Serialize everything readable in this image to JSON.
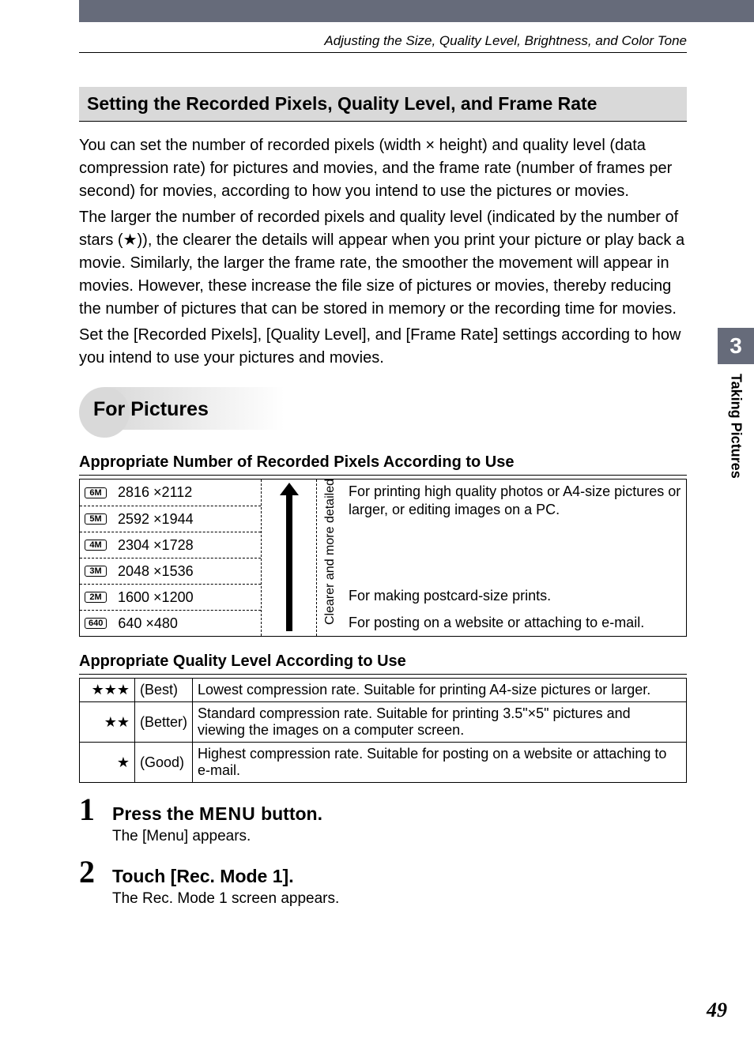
{
  "header": {
    "breadcrumb": "Adjusting the Size, Quality Level, Brightness, and Color Tone"
  },
  "section": {
    "heading": "Setting the Recorded Pixels, Quality Level, and Frame Rate"
  },
  "intro": {
    "p1": "You can set the number of recorded pixels (width × height) and quality level (data compression rate) for pictures and movies, and the frame rate (number of frames per second) for movies, according to how you intend to use the pictures or movies.",
    "p2a": "The larger the number of recorded pixels and quality level (indicated by the number of stars (",
    "p2_star": "★",
    "p2b": ")), the clearer the details will appear when you print your picture or play back a movie. Similarly, the larger the frame rate, the smoother the movement will appear in movies. However, these increase the file size of pictures or movies, thereby reducing the number of pictures that can be stored in memory or the recording time for movies.",
    "p3": "Set the [Recorded Pixels], [Quality Level], and [Frame Rate] settings according to how you intend to use your pictures and movies."
  },
  "for_pictures": {
    "title": "For Pictures",
    "pixels_heading": "Appropriate Number of Recorded Pixels According to Use",
    "rows": [
      {
        "badge": "6M",
        "dim": "2816 ×2112"
      },
      {
        "badge": "5M",
        "dim": "2592 ×1944"
      },
      {
        "badge": "4M",
        "dim": "2304 ×1728"
      },
      {
        "badge": "3M",
        "dim": "2048 ×1536"
      },
      {
        "badge": "2M",
        "dim": "1600 ×1200"
      },
      {
        "badge": "640",
        "dim": "640 ×480"
      }
    ],
    "arrow_label": "Clearer and more detailed",
    "use_top": "For printing high quality photos or A4-size pictures or larger, or editing images on a PC.",
    "use_mid": "For making postcard-size prints.",
    "use_bot": "For posting on a website or attaching to e-mail.",
    "quality_heading": "Appropriate Quality Level According to Use",
    "quality_rows": [
      {
        "stars": "★★★",
        "label": "(Best)",
        "desc": "Lowest compression rate. Suitable for printing A4-size pictures or larger."
      },
      {
        "stars": "★★",
        "label": "(Better)",
        "desc": "Standard compression rate. Suitable for printing 3.5\"×5\" pictures and viewing the images on a computer screen."
      },
      {
        "stars": "★",
        "label": "(Good)",
        "desc": "Highest compression rate. Suitable for posting on a website or attaching to e-mail."
      }
    ]
  },
  "steps": [
    {
      "num": "1",
      "title_a": "Press the ",
      "title_b": "MENU",
      "title_c": " button.",
      "desc": "The [Menu] appears."
    },
    {
      "num": "2",
      "title_a": "Touch [Rec. Mode 1].",
      "title_b": "",
      "title_c": "",
      "desc": "The Rec. Mode 1 screen appears."
    }
  ],
  "sidebar": {
    "chapter_num": "3",
    "chapter_title": "Taking Pictures"
  },
  "page_number": "49",
  "colors": {
    "bar": "#666b7a",
    "gray_bg": "#d9d9d9",
    "text": "#000000",
    "bg": "#ffffff"
  }
}
